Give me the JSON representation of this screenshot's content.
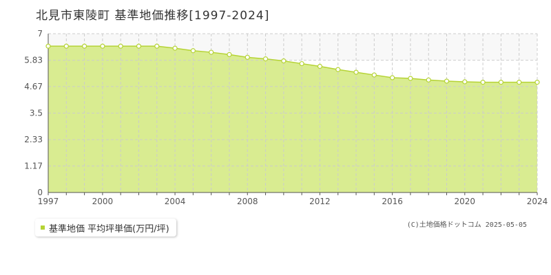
{
  "title": "北見市東陵町 基準地価推移[1997-2024]",
  "legend": {
    "label": "基準地価 平均坪単価(万円/坪)"
  },
  "copyright": "(C)土地価格ドットコム 2025-05-05",
  "colors": {
    "area_fill": "#d9ec91",
    "line": "#b5d334",
    "marker_fill": "#ffffff",
    "grid": "#cccccc",
    "axis": "#555555",
    "band_top": "#f8f8f8"
  },
  "chart_data": {
    "type": "area",
    "x": [
      1997,
      1998,
      1999,
      2000,
      2001,
      2002,
      2003,
      2004,
      2005,
      2006,
      2007,
      2008,
      2009,
      2010,
      2011,
      2012,
      2013,
      2014,
      2015,
      2016,
      2017,
      2018,
      2019,
      2020,
      2021,
      2022,
      2023,
      2024
    ],
    "series": [
      {
        "values": [
          6.45,
          6.45,
          6.45,
          6.45,
          6.45,
          6.45,
          6.45,
          6.36,
          6.25,
          6.18,
          6.08,
          5.96,
          5.89,
          5.8,
          5.68,
          5.56,
          5.42,
          5.3,
          5.18,
          5.06,
          5.03,
          4.96,
          4.91,
          4.88,
          4.86,
          4.86,
          4.86,
          4.86
        ]
      }
    ],
    "yticks": [
      0,
      1.17,
      2.33,
      3.5,
      4.67,
      5.83,
      7
    ],
    "ytick_labels": [
      "0",
      "1.17",
      "2.33",
      "3.5",
      "4.67",
      "5.83",
      "7"
    ],
    "xticks": [
      1997,
      2000,
      2004,
      2008,
      2012,
      2016,
      2020,
      2024
    ],
    "xtick_labels": [
      "1997",
      "2000",
      "2004",
      "2008",
      "2012",
      "2016",
      "2020",
      "2024"
    ],
    "xlim": [
      1997,
      2024
    ],
    "ylim": [
      0,
      7
    ],
    "grid": true,
    "legend_position": "bottom-left"
  }
}
